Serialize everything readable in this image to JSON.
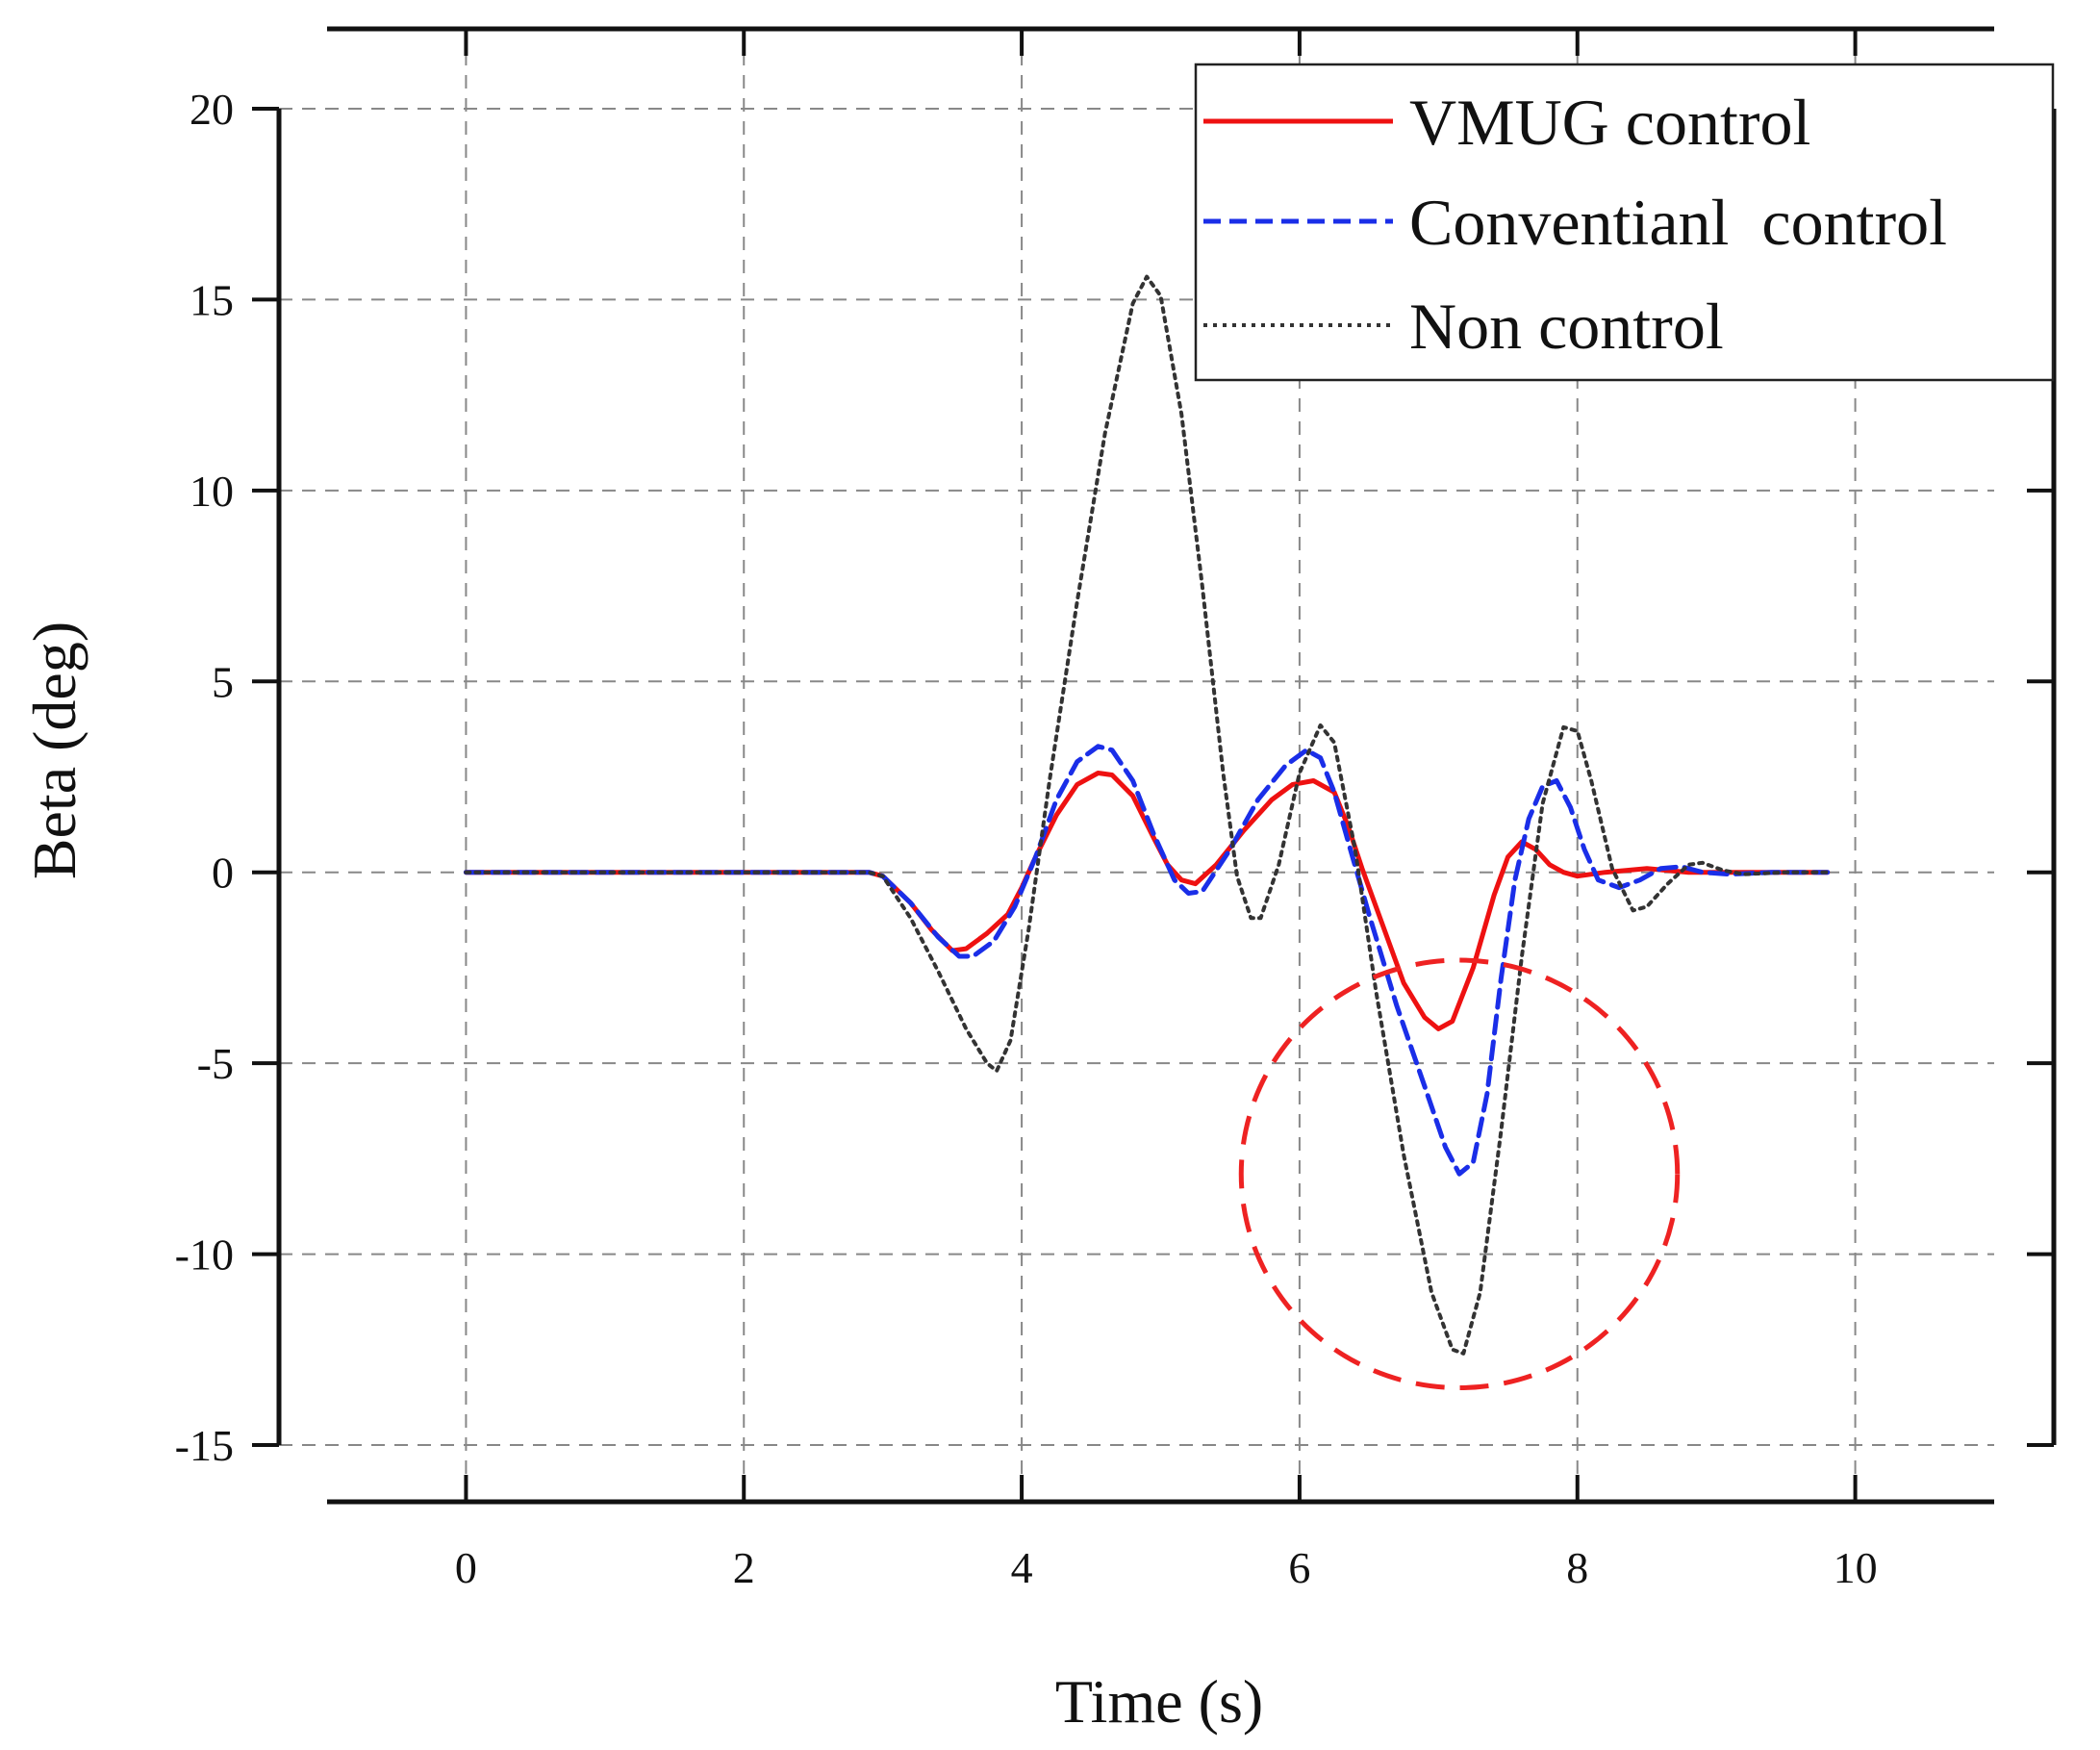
{
  "chart_data": {
    "type": "line",
    "title": "",
    "xlabel": "Time (s)",
    "ylabel": "Beta (deg)",
    "xlim": [
      -1,
      11
    ],
    "ylim": [
      -15,
      20
    ],
    "xticks": [
      "0",
      "2",
      "4",
      "6",
      "8",
      "10"
    ],
    "yticks": [
      "-15",
      "-10",
      "-5",
      "0",
      "5",
      "10",
      "15",
      "20"
    ],
    "grid": true,
    "legend_position": "top-right",
    "annotation": {
      "type": "dashed-circle",
      "color": "#ee2222",
      "center": [
        7.15,
        -7.9
      ],
      "radius_x": 1.57,
      "radius_y": 5.6
    },
    "series": [
      {
        "name": "VMUG control",
        "color": "#ee1111",
        "style": "solid",
        "points": [
          [
            0,
            0
          ],
          [
            2.9,
            0
          ],
          [
            3.0,
            -0.1
          ],
          [
            3.2,
            -0.8
          ],
          [
            3.35,
            -1.5
          ],
          [
            3.5,
            -2.05
          ],
          [
            3.6,
            -2.0
          ],
          [
            3.75,
            -1.6
          ],
          [
            3.9,
            -1.1
          ],
          [
            4.0,
            -0.4
          ],
          [
            4.1,
            0.4
          ],
          [
            4.25,
            1.5
          ],
          [
            4.4,
            2.3
          ],
          [
            4.55,
            2.6
          ],
          [
            4.65,
            2.55
          ],
          [
            4.8,
            2.0
          ],
          [
            4.95,
            0.9
          ],
          [
            5.05,
            0.2
          ],
          [
            5.15,
            -0.2
          ],
          [
            5.25,
            -0.3
          ],
          [
            5.4,
            0.2
          ],
          [
            5.6,
            1.1
          ],
          [
            5.8,
            1.9
          ],
          [
            5.95,
            2.3
          ],
          [
            6.1,
            2.4
          ],
          [
            6.25,
            2.1
          ],
          [
            6.35,
            1.2
          ],
          [
            6.45,
            0.1
          ],
          [
            6.6,
            -1.4
          ],
          [
            6.75,
            -2.9
          ],
          [
            6.9,
            -3.8
          ],
          [
            7.0,
            -4.1
          ],
          [
            7.1,
            -3.9
          ],
          [
            7.25,
            -2.5
          ],
          [
            7.4,
            -0.6
          ],
          [
            7.5,
            0.4
          ],
          [
            7.6,
            0.8
          ],
          [
            7.7,
            0.6
          ],
          [
            7.8,
            0.2
          ],
          [
            7.9,
            0.0
          ],
          [
            8.0,
            -0.1
          ],
          [
            8.2,
            0.0
          ],
          [
            8.5,
            0.1
          ],
          [
            8.8,
            0.0
          ],
          [
            9.8,
            0.0
          ]
        ]
      },
      {
        "name": "Conventianl  control",
        "color": "#1a2ee8",
        "style": "dashed",
        "points": [
          [
            0,
            0
          ],
          [
            2.9,
            0
          ],
          [
            3.0,
            -0.1
          ],
          [
            3.2,
            -0.8
          ],
          [
            3.4,
            -1.7
          ],
          [
            3.55,
            -2.2
          ],
          [
            3.65,
            -2.2
          ],
          [
            3.8,
            -1.8
          ],
          [
            3.95,
            -0.9
          ],
          [
            4.1,
            0.4
          ],
          [
            4.25,
            1.9
          ],
          [
            4.4,
            2.9
          ],
          [
            4.55,
            3.3
          ],
          [
            4.65,
            3.2
          ],
          [
            4.8,
            2.4
          ],
          [
            4.95,
            1.0
          ],
          [
            5.1,
            -0.2
          ],
          [
            5.2,
            -0.55
          ],
          [
            5.3,
            -0.5
          ],
          [
            5.5,
            0.6
          ],
          [
            5.7,
            1.9
          ],
          [
            5.9,
            2.8
          ],
          [
            6.05,
            3.2
          ],
          [
            6.15,
            3.0
          ],
          [
            6.25,
            2.1
          ],
          [
            6.35,
            0.8
          ],
          [
            6.5,
            -1.1
          ],
          [
            6.7,
            -3.5
          ],
          [
            6.9,
            -5.6
          ],
          [
            7.05,
            -7.2
          ],
          [
            7.15,
            -7.9
          ],
          [
            7.25,
            -7.6
          ],
          [
            7.35,
            -5.8
          ],
          [
            7.45,
            -2.8
          ],
          [
            7.55,
            -0.2
          ],
          [
            7.65,
            1.4
          ],
          [
            7.75,
            2.25
          ],
          [
            7.85,
            2.4
          ],
          [
            7.95,
            1.7
          ],
          [
            8.05,
            0.6
          ],
          [
            8.15,
            -0.2
          ],
          [
            8.3,
            -0.4
          ],
          [
            8.45,
            -0.2
          ],
          [
            8.6,
            0.1
          ],
          [
            8.75,
            0.15
          ],
          [
            8.9,
            0.0
          ],
          [
            9.1,
            -0.05
          ],
          [
            9.4,
            0.0
          ],
          [
            9.8,
            0.0
          ]
        ]
      },
      {
        "name": "Non control",
        "color": "#333333",
        "style": "dotted",
        "points": [
          [
            0,
            0
          ],
          [
            2.9,
            0
          ],
          [
            3.0,
            -0.1
          ],
          [
            3.2,
            -1.2
          ],
          [
            3.4,
            -2.6
          ],
          [
            3.6,
            -4.1
          ],
          [
            3.75,
            -5.0
          ],
          [
            3.82,
            -5.2
          ],
          [
            3.92,
            -4.4
          ],
          [
            4.05,
            -1.5
          ],
          [
            4.2,
            2.4
          ],
          [
            4.4,
            7.1
          ],
          [
            4.6,
            11.5
          ],
          [
            4.8,
            14.9
          ],
          [
            4.9,
            15.6
          ],
          [
            5.0,
            15.1
          ],
          [
            5.15,
            12.0
          ],
          [
            5.3,
            7.5
          ],
          [
            5.45,
            2.6
          ],
          [
            5.55,
            -0.1
          ],
          [
            5.65,
            -1.2
          ],
          [
            5.72,
            -1.2
          ],
          [
            5.85,
            0.2
          ],
          [
            6.0,
            2.6
          ],
          [
            6.15,
            3.85
          ],
          [
            6.25,
            3.4
          ],
          [
            6.4,
            0.6
          ],
          [
            6.55,
            -3.1
          ],
          [
            6.75,
            -7.4
          ],
          [
            6.95,
            -11.0
          ],
          [
            7.1,
            -12.5
          ],
          [
            7.18,
            -12.6
          ],
          [
            7.3,
            -11.0
          ],
          [
            7.45,
            -6.8
          ],
          [
            7.6,
            -2.2
          ],
          [
            7.75,
            1.8
          ],
          [
            7.9,
            3.8
          ],
          [
            8.0,
            3.7
          ],
          [
            8.1,
            2.4
          ],
          [
            8.25,
            0.1
          ],
          [
            8.4,
            -1.0
          ],
          [
            8.5,
            -0.9
          ],
          [
            8.65,
            -0.3
          ],
          [
            8.8,
            0.2
          ],
          [
            8.9,
            0.25
          ],
          [
            9.05,
            0.05
          ],
          [
            9.2,
            -0.05
          ],
          [
            9.5,
            0.0
          ],
          [
            9.8,
            0.0
          ]
        ]
      }
    ]
  }
}
